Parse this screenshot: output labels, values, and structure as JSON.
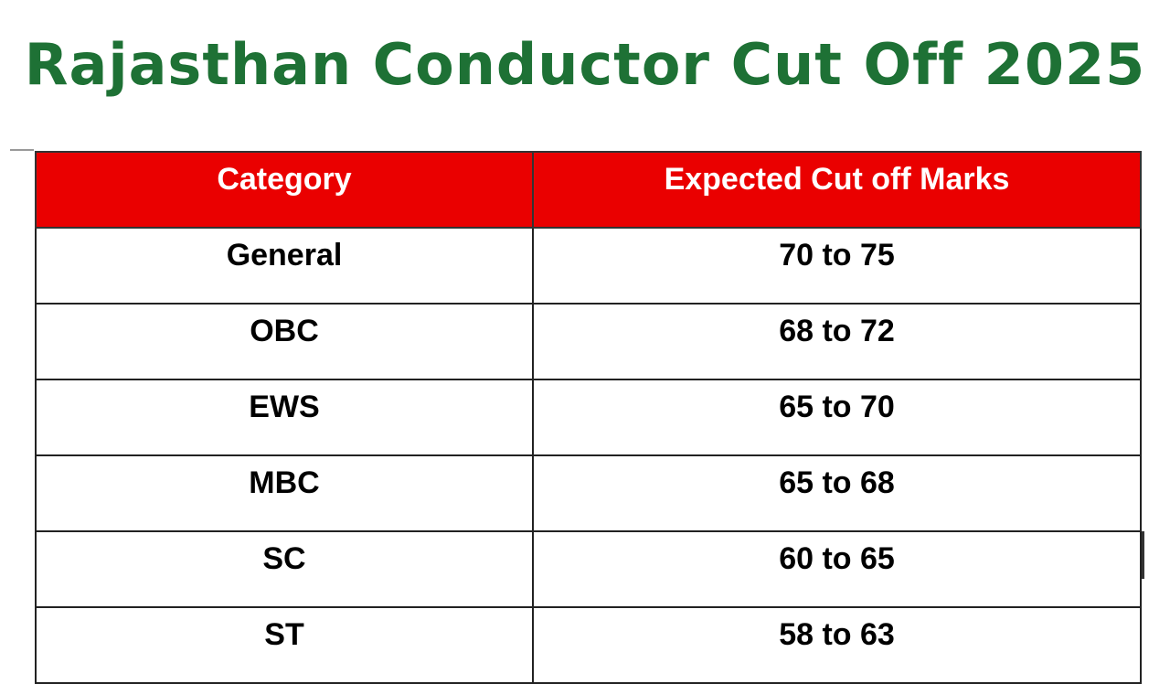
{
  "title": "Rajasthan Conductor Cut Off 2025",
  "table": {
    "headers": [
      "Category",
      "Expected Cut off Marks"
    ],
    "rows": [
      [
        "General",
        "70 to 75"
      ],
      [
        "OBC",
        "68 to 72"
      ],
      [
        "EWS",
        "65 to 70"
      ],
      [
        "MBC",
        "65 to 68"
      ],
      [
        "SC",
        "60 to 65"
      ],
      [
        "ST",
        "58 to 63"
      ]
    ]
  },
  "colors": {
    "title": "#1e7135",
    "header_bg": "#ea0000",
    "header_text": "#ffffff"
  }
}
